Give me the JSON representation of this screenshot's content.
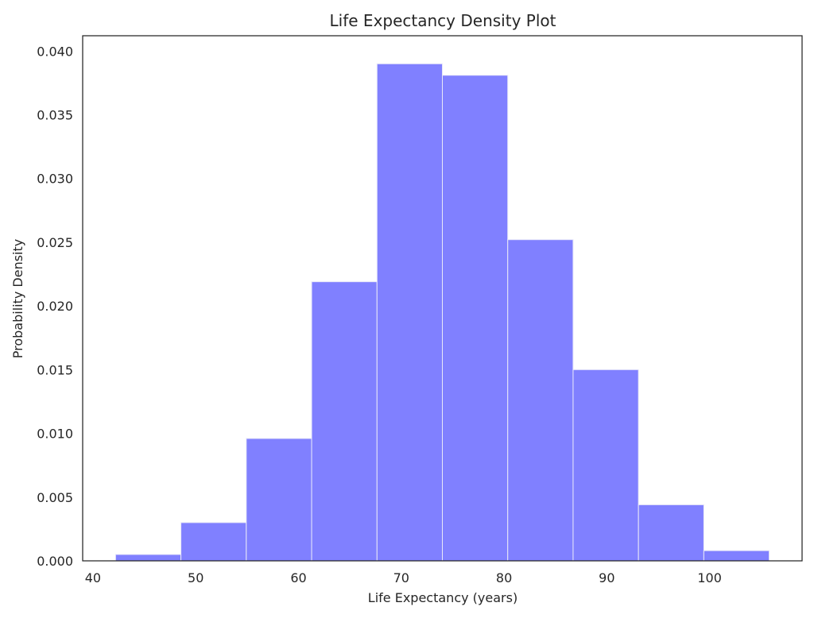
{
  "chart_data": {
    "type": "bar",
    "title": "Life Expectancy Density Plot",
    "xlabel": "Life Expectancy (years)",
    "ylabel": "Probability Density",
    "bin_edges": [
      42.2,
      48.56,
      54.92,
      61.28,
      67.64,
      74.0,
      80.36,
      86.72,
      93.08,
      99.44,
      105.8
    ],
    "values": [
      0.0005,
      0.003,
      0.0096,
      0.0219,
      0.039,
      0.0381,
      0.0252,
      0.015,
      0.0044,
      0.0008
    ],
    "xlim": [
      39.0,
      109.0
    ],
    "ylim": [
      0.0,
      0.0412
    ],
    "xticks": [
      40,
      50,
      60,
      70,
      80,
      90,
      100
    ],
    "xtick_labels": [
      "40",
      "50",
      "60",
      "70",
      "80",
      "90",
      "100"
    ],
    "yticks": [
      0.0,
      0.005,
      0.01,
      0.015,
      0.02,
      0.025,
      0.03,
      0.035,
      0.04
    ],
    "ytick_labels": [
      "0.000",
      "0.005",
      "0.010",
      "0.015",
      "0.020",
      "0.025",
      "0.030",
      "0.035",
      "0.040"
    ],
    "grid": false,
    "bar_color": "#8080ff",
    "bar_edge_color": "#e8e8f8",
    "axes_color": "#262626"
  }
}
